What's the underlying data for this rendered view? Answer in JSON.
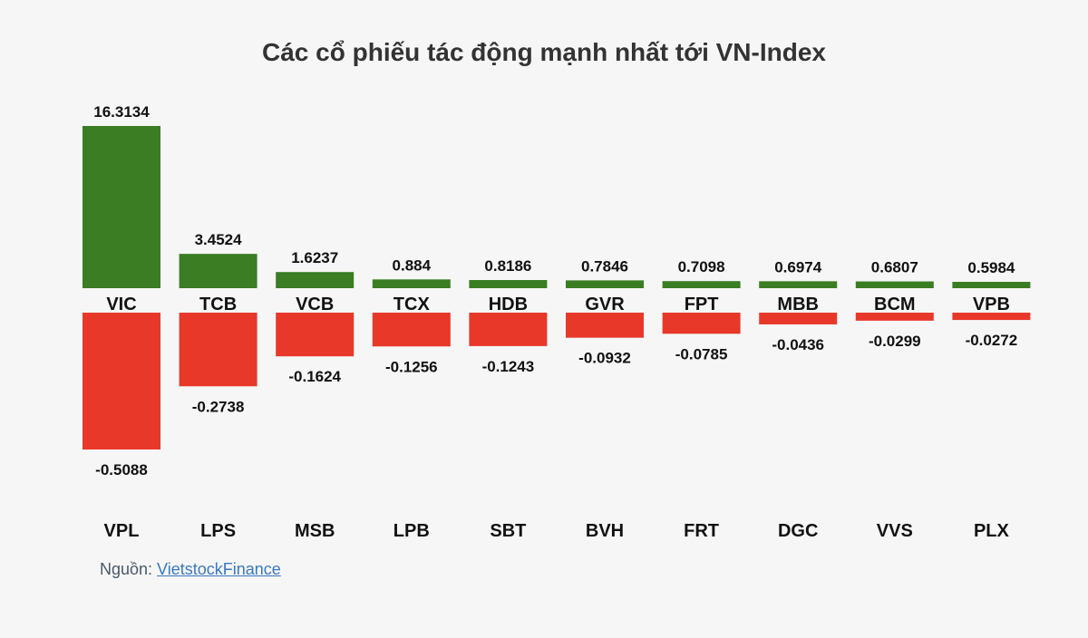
{
  "chart_data": {
    "type": "bar",
    "title": "Các cổ phiếu tác động mạnh nhất tới VN-Index",
    "positive_series": {
      "categories": [
        "VIC",
        "TCB",
        "VCB",
        "TCX",
        "HDB",
        "GVR",
        "FPT",
        "MBB",
        "BCM",
        "VPB"
      ],
      "values": [
        16.3134,
        3.4524,
        1.6237,
        0.884,
        0.8186,
        0.7846,
        0.7098,
        0.6974,
        0.6807,
        0.5984
      ],
      "labels": [
        "16.3134",
        "3.4524",
        "1.6237",
        "0.884",
        "0.8186",
        "0.7846",
        "0.7098",
        "0.6974",
        "0.6807",
        "0.5984"
      ]
    },
    "negative_series": {
      "categories": [
        "VPL",
        "LPS",
        "MSB",
        "LPB",
        "SBT",
        "BVH",
        "FRT",
        "DGC",
        "VVS",
        "PLX"
      ],
      "values": [
        -0.5088,
        -0.2738,
        -0.1624,
        -0.1256,
        -0.1243,
        -0.0932,
        -0.0785,
        -0.0436,
        -0.0299,
        -0.0272
      ],
      "labels": [
        "-0.5088",
        "-0.2738",
        "-0.1624",
        "-0.1256",
        "-0.1243",
        "-0.0932",
        "-0.0785",
        "-0.0436",
        "-0.0299",
        "-0.0272"
      ]
    },
    "colors": {
      "positive": "#3a7d23",
      "negative": "#e8382a"
    }
  },
  "source": {
    "prefix": "Nguồn: ",
    "link_text": "VietstockFinance"
  }
}
